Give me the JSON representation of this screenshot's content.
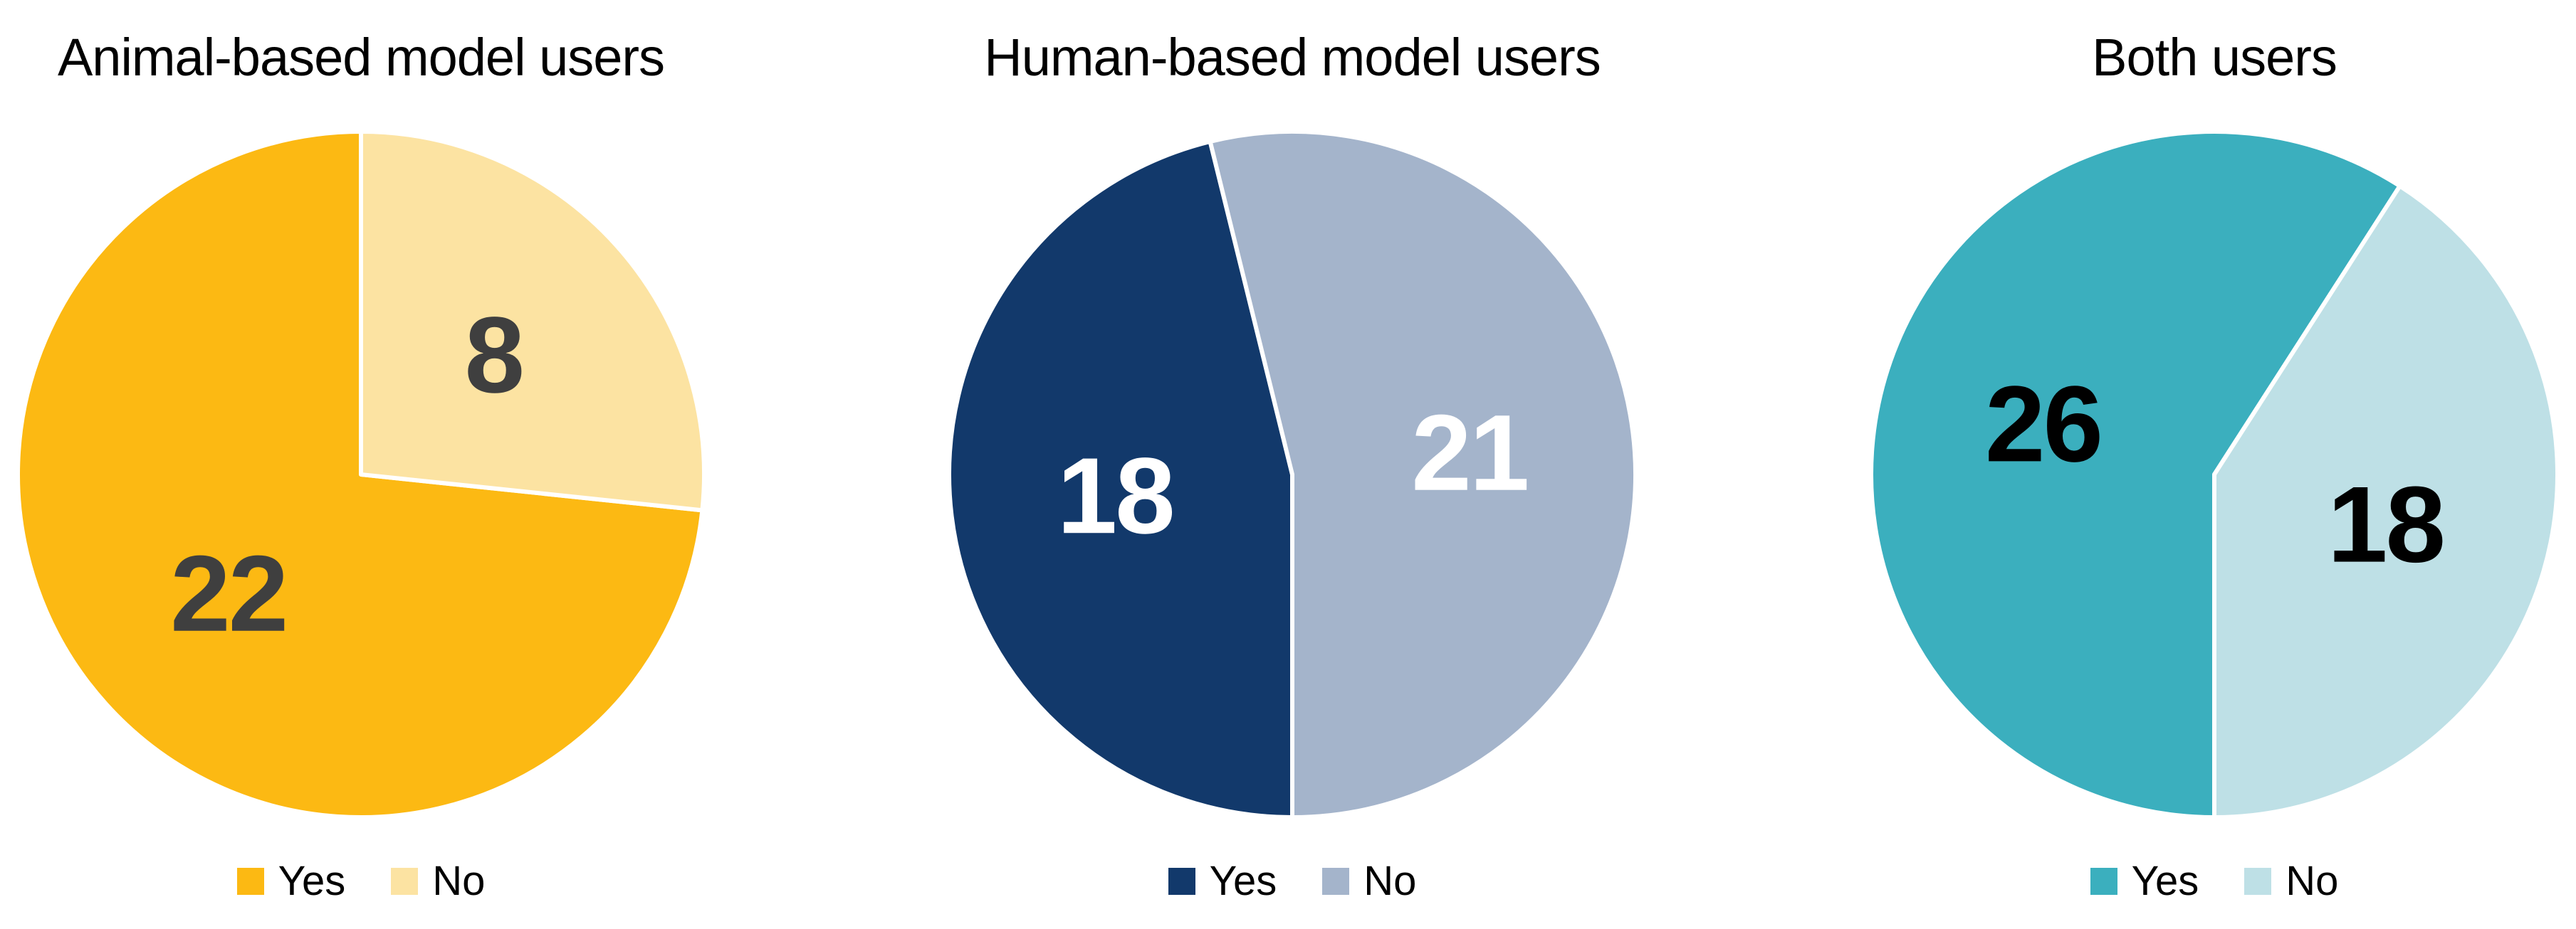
{
  "page_background": "#FFFFFF",
  "separator_color": "#FFFFFF",
  "chart_data": [
    {
      "type": "pie",
      "title": "Animal-based model users",
      "slices": [
        {
          "label": "Yes",
          "value": 22,
          "color": "#FCB913"
        },
        {
          "label": "No",
          "value": 8,
          "color": "#FCE3A2"
        }
      ],
      "value_label_color": "#3F3F3F",
      "start_angle_deg": 96,
      "data_labels": "values",
      "legend_position": "bottom",
      "legend": [
        "Yes",
        "No"
      ]
    },
    {
      "type": "pie",
      "title": "Human-based model users",
      "slices": [
        {
          "label": "Yes",
          "value": 18,
          "color": "#12396B"
        },
        {
          "label": "No",
          "value": 21,
          "color": "#A4B4CB"
        }
      ],
      "value_label_color": "#FFFFFF",
      "start_angle_deg": 180,
      "data_labels": "values",
      "legend_position": "bottom",
      "legend": [
        "Yes",
        "No"
      ]
    },
    {
      "type": "pie",
      "title": "Both users",
      "slices": [
        {
          "label": "Yes",
          "value": 26,
          "color": "#3BAFBE"
        },
        {
          "label": "No",
          "value": 18,
          "color": "#BEE0E6"
        }
      ],
      "value_label_color": "#000000",
      "start_angle_deg": 180,
      "data_labels": "values",
      "legend_position": "bottom",
      "legend": [
        "Yes",
        "No"
      ]
    }
  ]
}
